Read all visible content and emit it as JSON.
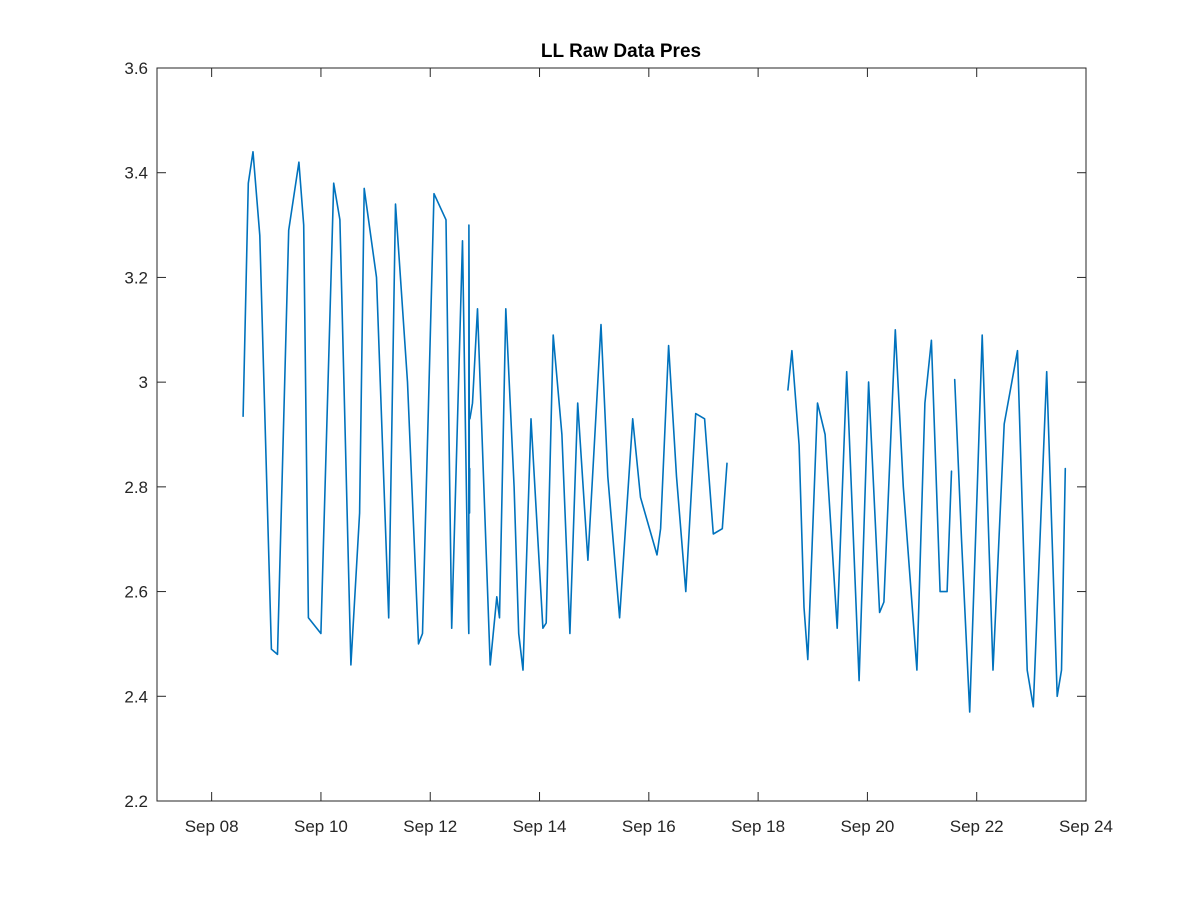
{
  "chart_data": {
    "type": "line",
    "title": "LL Raw Data Pres",
    "xlabel": "",
    "ylabel": "",
    "x_axis_kind": "date",
    "xlim": [
      "Sep 07",
      "Sep 24"
    ],
    "ylim": [
      2.2,
      3.6
    ],
    "x_ticks": [
      {
        "day": 8,
        "label": "Sep 08"
      },
      {
        "day": 10,
        "label": "Sep 10"
      },
      {
        "day": 12,
        "label": "Sep 12"
      },
      {
        "day": 14,
        "label": "Sep 14"
      },
      {
        "day": 16,
        "label": "Sep 16"
      },
      {
        "day": 18,
        "label": "Sep 18"
      },
      {
        "day": 20,
        "label": "Sep 20"
      },
      {
        "day": 22,
        "label": "Sep 22"
      },
      {
        "day": 24,
        "label": "Sep 24"
      }
    ],
    "y_ticks": [
      {
        "value": 2.2,
        "label": "2.2"
      },
      {
        "value": 2.4,
        "label": "2.4"
      },
      {
        "value": 2.6,
        "label": "2.6"
      },
      {
        "value": 2.8,
        "label": "2.8"
      },
      {
        "value": 3.0,
        "label": "3"
      },
      {
        "value": 3.2,
        "label": "3.2"
      },
      {
        "value": 3.4,
        "label": "3.4"
      },
      {
        "value": 3.6,
        "label": "3.6"
      }
    ],
    "grid": false,
    "legend": "none",
    "line_color": "#0072BD",
    "series": [
      {
        "segments": [
          {
            "x": [
              "Sep 08 13:50",
              "Sep 08 16:05",
              "Sep 08 18:10",
              "Sep 08 21:10",
              "Sep 09 02:15",
              "Sep 09 04:55",
              "Sep 09 09:50",
              "Sep 09 14:20",
              "Sep 09 16:25",
              "Sep 09 18:30",
              "Sep 10 00:00",
              "Sep 10 05:35",
              "Sep 10 08:20",
              "Sep 10 13:10",
              "Sep 10 17:00",
              "Sep 10 19:00",
              "Sep 11 00:25",
              "Sep 11 05:45",
              "Sep 11 08:45",
              "Sep 11 14:00",
              "Sep 11 18:50",
              "Sep 11 20:35",
              "Sep 12 01:40",
              "Sep 12 06:55",
              "Sep 12 09:25",
              "Sep 12 14:10",
              "Sep 12 16:45",
              "Sep 12 16:55",
              "Sep 12 17:00",
              "Sep 12 17:05",
              "Sep 12 17:10"
            ],
            "y": [
              2.935,
              3.38,
              3.44,
              3.28,
              2.49,
              2.48,
              3.29,
              3.42,
              3.3,
              2.55,
              2.52,
              3.38,
              3.31,
              2.46,
              2.75,
              3.37,
              3.2,
              2.55,
              3.34,
              3.0,
              2.5,
              2.52,
              3.36,
              3.31,
              2.53,
              3.27,
              2.55,
              2.52,
              3.3,
              3.2,
              2.75
            ]
          },
          {
            "x": [
              "Sep 12 17:15",
              "Sep 12 17:20"
            ],
            "y": [
              2.75,
              2.835
            ]
          },
          {
            "x": [
              "Sep 12 17:25",
              "Sep 12 18:35",
              "Sep 12 20:45",
              "Sep 13 02:20",
              "Sep 13 05:15",
              "Sep 13 06:25",
              "Sep 13 09:10",
              "Sep 13 12:50",
              "Sep 13 14:50",
              "Sep 13 16:45",
              "Sep 13 20:15",
              "Sep 14 01:30",
              "Sep 14 02:55",
              "Sep 14 06:00",
              "Sep 14 09:50",
              "Sep 14 13:20",
              "Sep 14 16:45",
              "Sep 14 21:15",
              "Sep 15 03:00",
              "Sep 15 06:00",
              "Sep 15 11:10",
              "Sep 15 16:55",
              "Sep 15 20:20",
              "Sep 16 03:35",
              "Sep 16 05:10",
              "Sep 16 08:40",
              "Sep 16 12:10",
              "Sep 16 16:15",
              "Sep 16 20:35",
              "Sep 17 00:30",
              "Sep 17 04:20",
              "Sep 17 08:15",
              "Sep 17 10:20"
            ],
            "y": [
              2.93,
              2.96,
              3.14,
              2.46,
              2.59,
              2.55,
              3.14,
              2.8,
              2.52,
              2.45,
              2.93,
              2.53,
              2.54,
              3.09,
              2.9,
              2.52,
              2.96,
              2.66,
              3.11,
              2.82,
              2.55,
              2.93,
              2.78,
              2.67,
              2.72,
              3.07,
              2.82,
              2.6,
              2.94,
              2.93,
              2.71,
              2.72,
              2.845
            ]
          },
          {
            "x": [
              "Sep 18 13:05",
              "Sep 18 14:50",
              "Sep 18 18:00",
              "Sep 18 20:10",
              "Sep 18 21:50",
              "Sep 19 02:05",
              "Sep 19 05:25",
              "Sep 19 10:45",
              "Sep 19 14:55",
              "Sep 19 20:20",
              "Sep 20 00:30",
              "Sep 20 05:20",
              "Sep 20 07:15",
              "Sep 20 12:15",
              "Sep 20 15:45",
              "Sep 20 21:45",
              "Sep 21 01:15",
              "Sep 21 04:05",
              "Sep 21 07:55",
              "Sep 21 11:00",
              "Sep 21 12:55"
            ],
            "y": [
              2.985,
              3.06,
              2.88,
              2.57,
              2.47,
              2.96,
              2.9,
              2.53,
              3.02,
              2.43,
              3.0,
              2.56,
              2.58,
              3.1,
              2.8,
              2.45,
              2.96,
              3.08,
              2.6,
              2.6,
              2.83
            ]
          },
          {
            "x": [
              "Sep 21 14:20",
              "Sep 21 17:20",
              "Sep 21 20:55",
              "Sep 22 00:15",
              "Sep 22 02:25",
              "Sep 22 07:10",
              "Sep 22 12:05",
              "Sep 22 17:55",
              "Sep 22 22:10",
              "Sep 23 00:50",
              "Sep 23 06:45",
              "Sep 23 11:20",
              "Sep 23 13:15",
              "Sep 23 14:55"
            ],
            "y": [
              3.005,
              2.7,
              2.37,
              2.8,
              3.09,
              2.45,
              2.92,
              3.06,
              2.45,
              2.38,
              3.02,
              2.4,
              2.45,
              2.835
            ]
          }
        ]
      }
    ]
  }
}
